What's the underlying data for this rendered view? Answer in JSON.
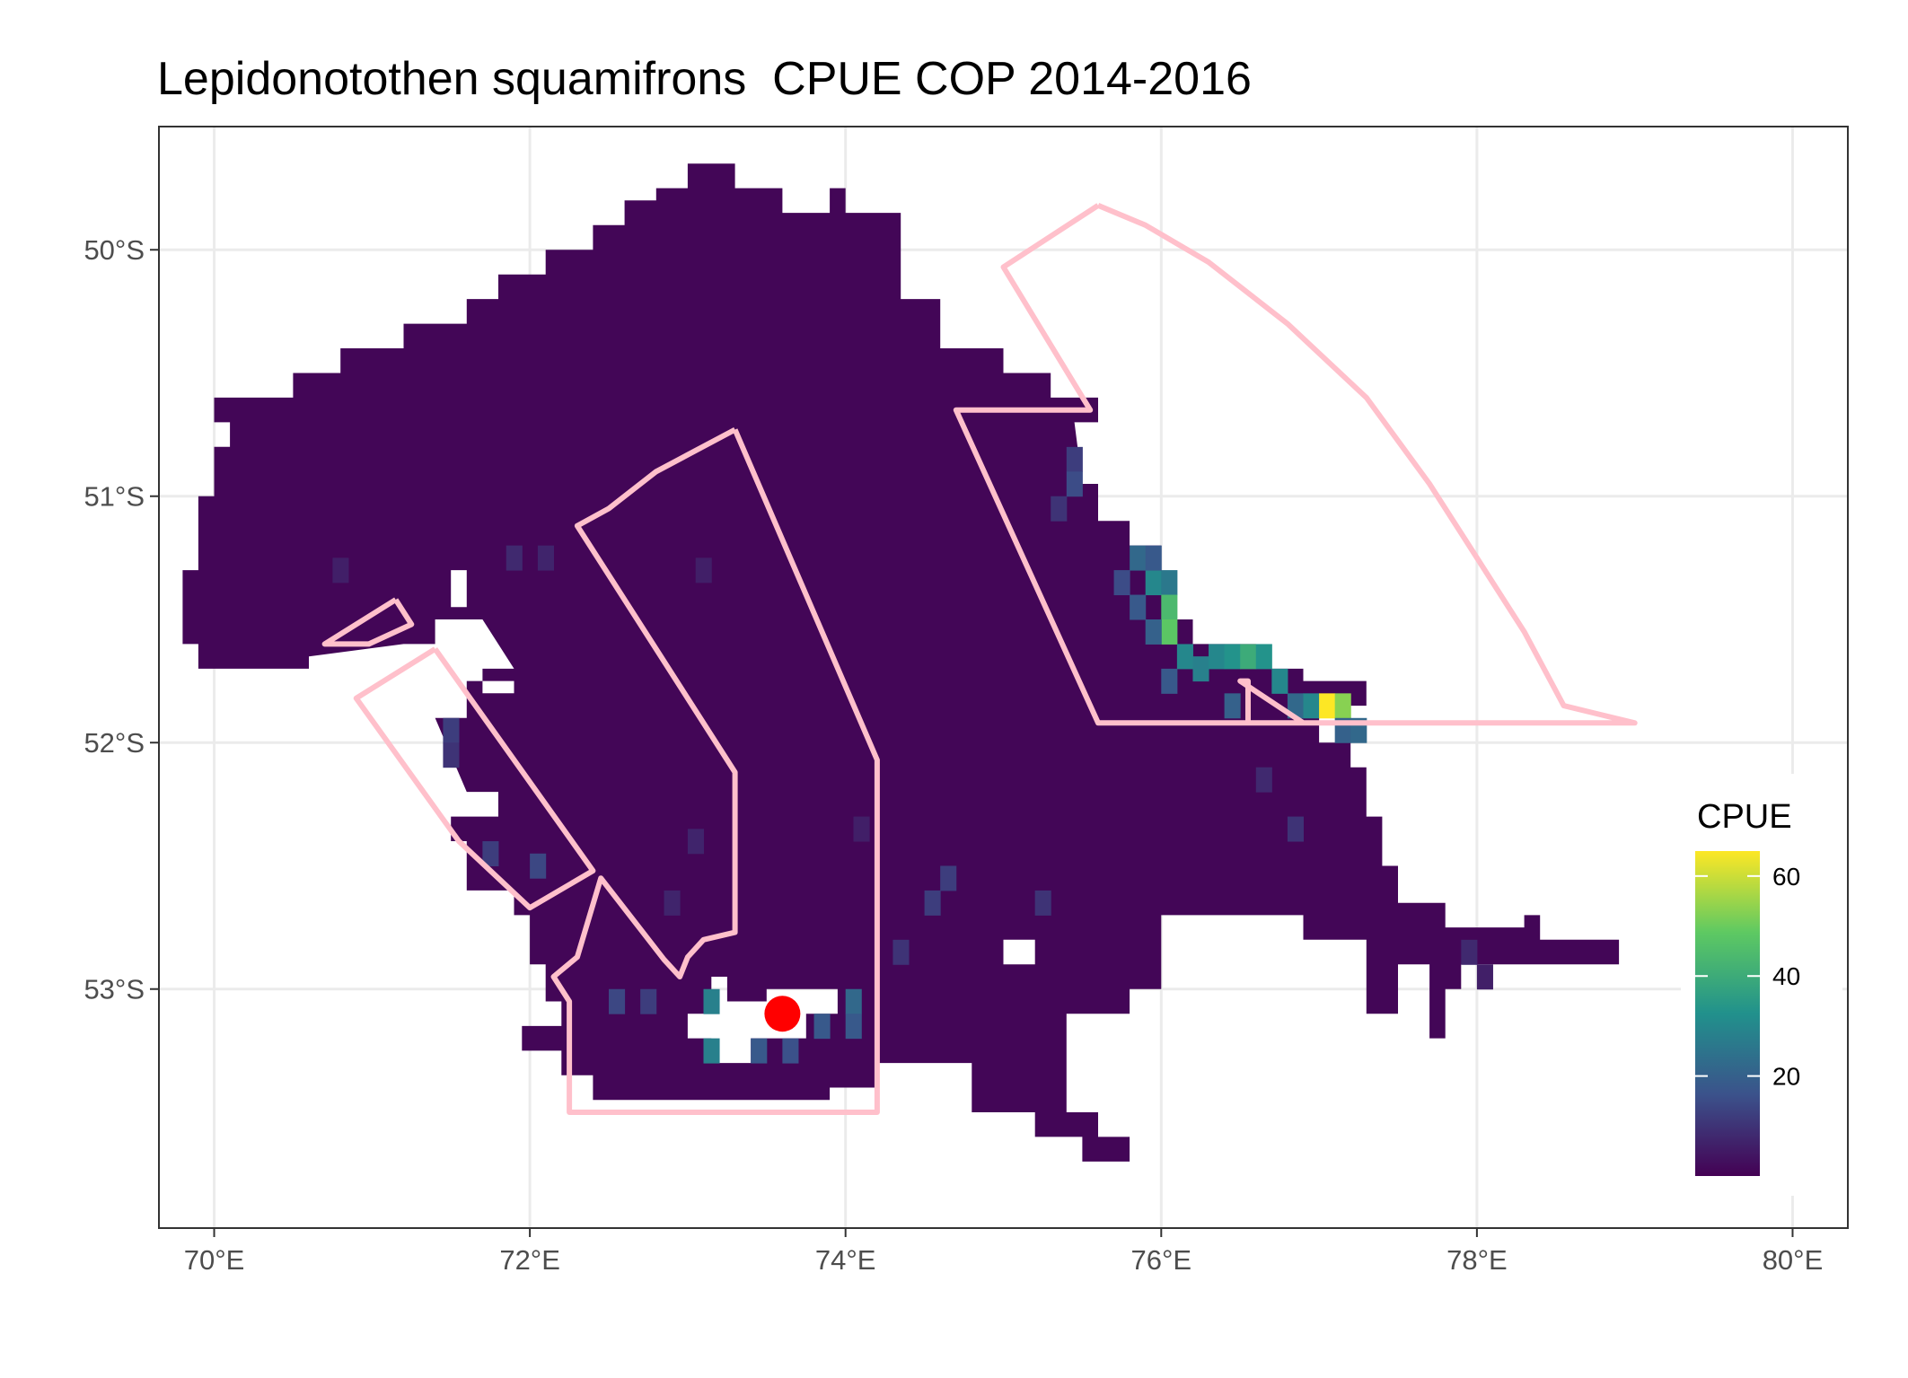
{
  "chart_data": {
    "type": "heatmap",
    "title": "Lepidonotothen squamifrons  CPUE COP 2014-2016",
    "xlabel": "",
    "ylabel": "",
    "xlim": [
      69.65,
      80.35
    ],
    "ylim": [
      -53.97,
      -49.5
    ],
    "x_ticks": [
      {
        "value": 70,
        "label": "70°E"
      },
      {
        "value": 72,
        "label": "72°E"
      },
      {
        "value": 74,
        "label": "74°E"
      },
      {
        "value": 76,
        "label": "76°E"
      },
      {
        "value": 78,
        "label": "78°E"
      },
      {
        "value": 80,
        "label": "80°E"
      }
    ],
    "y_ticks": [
      {
        "value": -50,
        "label": "50°S"
      },
      {
        "value": -51,
        "label": "51°S"
      },
      {
        "value": -52,
        "label": "52°S"
      },
      {
        "value": -53,
        "label": "53°S"
      }
    ],
    "grid": true,
    "legend": {
      "title": "CPUE",
      "placement": "right",
      "min": 0,
      "max": 65,
      "ticks": [
        20,
        40,
        60
      ],
      "colormap": [
        "#440154",
        "#3b528b",
        "#21918c",
        "#5ec962",
        "#fde725"
      ]
    },
    "region": {
      "base_value": 1,
      "polygon": [
        [
          73.0,
          49.65
        ],
        [
          73.3,
          49.65
        ],
        [
          73.3,
          49.75
        ],
        [
          73.6,
          49.75
        ],
        [
          73.6,
          49.85
        ],
        [
          73.9,
          49.85
        ],
        [
          73.9,
          49.75
        ],
        [
          74.0,
          49.75
        ],
        [
          74.0,
          49.85
        ],
        [
          74.35,
          49.85
        ],
        [
          74.35,
          50.2
        ],
        [
          74.6,
          50.2
        ],
        [
          74.6,
          50.4
        ],
        [
          75.0,
          50.4
        ],
        [
          75.0,
          50.5
        ],
        [
          75.3,
          50.5
        ],
        [
          75.3,
          50.6
        ],
        [
          75.6,
          50.6
        ],
        [
          75.6,
          50.7
        ],
        [
          75.45,
          50.7
        ],
        [
          75.5,
          50.95
        ],
        [
          75.6,
          50.95
        ],
        [
          75.6,
          51.1
        ],
        [
          75.8,
          51.1
        ],
        [
          75.8,
          51.2
        ],
        [
          76.0,
          51.2
        ],
        [
          76.0,
          51.4
        ],
        [
          76.1,
          51.4
        ],
        [
          76.1,
          51.5
        ],
        [
          76.2,
          51.5
        ],
        [
          76.2,
          51.6
        ],
        [
          76.6,
          51.6
        ],
        [
          76.6,
          51.7
        ],
        [
          76.9,
          51.7
        ],
        [
          76.9,
          51.75
        ],
        [
          77.3,
          51.75
        ],
        [
          77.3,
          51.85
        ],
        [
          77.0,
          51.85
        ],
        [
          77.0,
          52.0
        ],
        [
          77.2,
          52.0
        ],
        [
          77.2,
          52.1
        ],
        [
          77.3,
          52.1
        ],
        [
          77.3,
          52.3
        ],
        [
          77.4,
          52.3
        ],
        [
          77.4,
          52.5
        ],
        [
          77.5,
          52.5
        ],
        [
          77.5,
          52.65
        ],
        [
          77.8,
          52.65
        ],
        [
          77.8,
          52.75
        ],
        [
          78.3,
          52.75
        ],
        [
          78.3,
          52.7
        ],
        [
          78.4,
          52.7
        ],
        [
          78.4,
          52.8
        ],
        [
          78.9,
          52.8
        ],
        [
          78.9,
          52.9
        ],
        [
          78.5,
          52.9
        ],
        [
          78.5,
          52.9
        ],
        [
          78.4,
          52.9
        ],
        [
          78.0,
          52.9
        ],
        [
          77.9,
          52.9
        ],
        [
          77.9,
          53.0
        ],
        [
          77.8,
          53.0
        ],
        [
          77.8,
          53.2
        ],
        [
          77.7,
          53.2
        ],
        [
          77.7,
          52.9
        ],
        [
          77.5,
          52.9
        ],
        [
          77.5,
          53.1
        ],
        [
          77.3,
          53.1
        ],
        [
          77.3,
          52.8
        ],
        [
          76.9,
          52.8
        ],
        [
          76.9,
          52.7
        ],
        [
          76.0,
          52.7
        ],
        [
          76.0,
          53.0
        ],
        [
          75.8,
          53.0
        ],
        [
          75.8,
          53.1
        ],
        [
          75.4,
          53.1
        ],
        [
          75.4,
          53.5
        ],
        [
          75.6,
          53.5
        ],
        [
          75.6,
          53.6
        ],
        [
          75.8,
          53.6
        ],
        [
          75.8,
          53.7
        ],
        [
          75.5,
          53.7
        ],
        [
          75.5,
          53.6
        ],
        [
          75.2,
          53.6
        ],
        [
          75.2,
          53.5
        ],
        [
          74.8,
          53.5
        ],
        [
          74.8,
          53.3
        ],
        [
          74.2,
          53.3
        ],
        [
          74.2,
          53.4
        ],
        [
          73.9,
          53.4
        ],
        [
          73.9,
          53.45
        ],
        [
          73.6,
          53.45
        ],
        [
          73.6,
          53.45
        ],
        [
          73.1,
          53.45
        ],
        [
          72.8,
          53.45
        ],
        [
          72.7,
          53.45
        ],
        [
          72.6,
          53.45
        ],
        [
          72.4,
          53.45
        ],
        [
          72.4,
          53.35
        ],
        [
          72.2,
          53.35
        ],
        [
          72.2,
          53.25
        ],
        [
          71.95,
          53.25
        ],
        [
          71.95,
          53.15
        ],
        [
          72.2,
          53.15
        ],
        [
          72.2,
          53.05
        ],
        [
          72.1,
          53.05
        ],
        [
          72.1,
          52.9
        ],
        [
          72.0,
          52.9
        ],
        [
          72.0,
          52.7
        ],
        [
          71.9,
          52.7
        ],
        [
          71.9,
          52.6
        ],
        [
          71.6,
          52.6
        ],
        [
          71.6,
          52.4
        ],
        [
          71.5,
          52.4
        ],
        [
          71.5,
          52.3
        ],
        [
          71.8,
          52.3
        ],
        [
          71.8,
          52.2
        ],
        [
          71.6,
          52.2
        ],
        [
          71.4,
          51.9
        ],
        [
          71.6,
          51.9
        ],
        [
          71.6,
          51.75
        ],
        [
          71.9,
          51.75
        ],
        [
          71.9,
          51.7
        ],
        [
          71.7,
          51.5
        ],
        [
          71.4,
          51.5
        ],
        [
          71.4,
          51.6
        ],
        [
          71.2,
          51.6
        ],
        [
          70.6,
          51.65
        ],
        [
          70.6,
          51.7
        ],
        [
          69.9,
          51.7
        ],
        [
          69.9,
          51.6
        ],
        [
          69.8,
          51.6
        ],
        [
          69.8,
          51.3
        ],
        [
          69.9,
          51.3
        ],
        [
          69.9,
          51.0
        ],
        [
          70.0,
          51.0
        ],
        [
          70.0,
          50.8
        ],
        [
          70.1,
          50.8
        ],
        [
          70.1,
          50.7
        ],
        [
          70.0,
          50.7
        ],
        [
          70.0,
          50.6
        ],
        [
          70.5,
          50.6
        ],
        [
          70.5,
          50.5
        ],
        [
          70.8,
          50.5
        ],
        [
          70.8,
          50.4
        ],
        [
          71.2,
          50.4
        ],
        [
          71.2,
          50.3
        ],
        [
          71.6,
          50.3
        ],
        [
          71.6,
          50.2
        ],
        [
          71.8,
          50.2
        ],
        [
          71.8,
          50.1
        ],
        [
          72.1,
          50.1
        ],
        [
          72.1,
          50.0
        ],
        [
          72.4,
          50.0
        ],
        [
          72.4,
          49.9
        ],
        [
          72.6,
          49.9
        ],
        [
          72.6,
          49.8
        ],
        [
          72.8,
          49.8
        ],
        [
          72.8,
          49.75
        ],
        [
          73.0,
          49.75
        ]
      ],
      "holes": [
        [
          [
            71.5,
            51.3
          ],
          [
            71.6,
            51.3
          ],
          [
            71.6,
            51.45
          ],
          [
            71.5,
            51.45
          ]
        ],
        [
          [
            71.7,
            51.7
          ],
          [
            71.9,
            51.7
          ],
          [
            71.9,
            51.8
          ],
          [
            71.7,
            51.8
          ]
        ],
        [
          [
            73.15,
            52.95
          ],
          [
            73.25,
            52.95
          ],
          [
            73.25,
            53.05
          ],
          [
            73.5,
            53.05
          ],
          [
            73.5,
            53.0
          ],
          [
            73.95,
            53.0
          ],
          [
            73.95,
            53.1
          ],
          [
            73.75,
            53.1
          ],
          [
            73.75,
            53.2
          ],
          [
            73.4,
            53.2
          ],
          [
            73.4,
            53.3
          ],
          [
            73.15,
            53.3
          ],
          [
            73.15,
            53.2
          ],
          [
            73.0,
            53.2
          ],
          [
            73.0,
            53.1
          ],
          [
            73.15,
            53.1
          ]
        ],
        [
          [
            75.0,
            52.8
          ],
          [
            75.2,
            52.8
          ],
          [
            75.2,
            52.9
          ],
          [
            75.0,
            52.9
          ]
        ]
      ]
    },
    "cells": [
      {
        "x": 75.95,
        "y": 51.35,
        "v": 30
      },
      {
        "x": 76.05,
        "y": 51.35,
        "v": 26
      },
      {
        "x": 76.05,
        "y": 51.45,
        "v": 44
      },
      {
        "x": 76.05,
        "y": 51.55,
        "v": 48
      },
      {
        "x": 75.85,
        "y": 51.25,
        "v": 22
      },
      {
        "x": 75.95,
        "y": 51.25,
        "v": 18
      },
      {
        "x": 76.15,
        "y": 51.65,
        "v": 30
      },
      {
        "x": 76.25,
        "y": 51.7,
        "v": 28
      },
      {
        "x": 76.35,
        "y": 51.65,
        "v": 30
      },
      {
        "x": 76.45,
        "y": 51.65,
        "v": 33
      },
      {
        "x": 76.55,
        "y": 51.65,
        "v": 40
      },
      {
        "x": 76.65,
        "y": 51.65,
        "v": 33
      },
      {
        "x": 76.75,
        "y": 51.75,
        "v": 30
      },
      {
        "x": 76.85,
        "y": 51.85,
        "v": 22
      },
      {
        "x": 76.95,
        "y": 51.85,
        "v": 30
      },
      {
        "x": 77.05,
        "y": 51.85,
        "v": 65
      },
      {
        "x": 77.15,
        "y": 51.85,
        "v": 53
      },
      {
        "x": 77.15,
        "y": 51.95,
        "v": 20
      },
      {
        "x": 77.25,
        "y": 51.95,
        "v": 22
      },
      {
        "x": 75.75,
        "y": 51.35,
        "v": 15
      },
      {
        "x": 75.85,
        "y": 51.45,
        "v": 18
      },
      {
        "x": 75.95,
        "y": 51.55,
        "v": 20
      },
      {
        "x": 76.05,
        "y": 51.75,
        "v": 18
      },
      {
        "x": 76.45,
        "y": 51.85,
        "v": 20
      },
      {
        "x": 75.45,
        "y": 50.85,
        "v": 12
      },
      {
        "x": 75.45,
        "y": 50.95,
        "v": 15
      },
      {
        "x": 75.35,
        "y": 51.05,
        "v": 10
      },
      {
        "x": 73.15,
        "y": 53.05,
        "v": 28
      },
      {
        "x": 73.15,
        "y": 53.25,
        "v": 28
      },
      {
        "x": 73.45,
        "y": 53.25,
        "v": 18
      },
      {
        "x": 73.65,
        "y": 53.25,
        "v": 16
      },
      {
        "x": 73.85,
        "y": 53.15,
        "v": 18
      },
      {
        "x": 74.05,
        "y": 53.05,
        "v": 22
      },
      {
        "x": 74.05,
        "y": 53.15,
        "v": 18
      },
      {
        "x": 72.55,
        "y": 53.05,
        "v": 14
      },
      {
        "x": 72.75,
        "y": 53.05,
        "v": 12
      },
      {
        "x": 74.35,
        "y": 52.85,
        "v": 10
      },
      {
        "x": 74.55,
        "y": 52.65,
        "v": 12
      },
      {
        "x": 74.65,
        "y": 52.55,
        "v": 12
      },
      {
        "x": 71.75,
        "y": 52.45,
        "v": 12
      },
      {
        "x": 72.05,
        "y": 52.5,
        "v": 14
      },
      {
        "x": 71.5,
        "y": 51.95,
        "v": 12
      },
      {
        "x": 71.5,
        "y": 52.05,
        "v": 10
      },
      {
        "x": 75.25,
        "y": 52.65,
        "v": 10
      },
      {
        "x": 76.85,
        "y": 52.35,
        "v": 10
      },
      {
        "x": 76.65,
        "y": 52.15,
        "v": 8
      },
      {
        "x": 77.95,
        "y": 52.85,
        "v": 8
      },
      {
        "x": 78.05,
        "y": 52.95,
        "v": 6
      },
      {
        "x": 71.9,
        "y": 51.25,
        "v": 8
      },
      {
        "x": 72.1,
        "y": 51.25,
        "v": 7
      },
      {
        "x": 70.8,
        "y": 51.3,
        "v": 6
      },
      {
        "x": 73.1,
        "y": 51.3,
        "v": 6
      },
      {
        "x": 73.05,
        "y": 52.4,
        "v": 7
      },
      {
        "x": 74.1,
        "y": 52.35,
        "v": 6
      },
      {
        "x": 72.9,
        "y": 52.65,
        "v": 7
      }
    ],
    "cell_size": [
      0.1,
      0.1
    ],
    "boundaries": [
      {
        "name": "",
        "points": [
          [
            75.6,
            49.82
          ],
          [
            75.9,
            49.9
          ],
          [
            76.3,
            50.05
          ],
          [
            76.8,
            50.3
          ],
          [
            77.3,
            50.6
          ],
          [
            77.7,
            50.95
          ],
          [
            78.0,
            51.25
          ],
          [
            78.3,
            51.55
          ],
          [
            78.55,
            51.85
          ],
          [
            79.0,
            51.92
          ],
          [
            76.55,
            51.92
          ],
          [
            76.55,
            51.75
          ],
          [
            76.5,
            51.75
          ],
          [
            76.9,
            51.92
          ],
          [
            75.6,
            51.92
          ],
          [
            74.7,
            50.65
          ],
          [
            75.55,
            50.65
          ],
          [
            75.0,
            50.07
          ],
          [
            75.6,
            49.82
          ]
        ]
      },
      {
        "name": "",
        "points": [
          [
            73.3,
            50.73
          ],
          [
            74.2,
            52.07
          ],
          [
            74.2,
            53.5
          ],
          [
            72.25,
            53.5
          ],
          [
            72.25,
            53.05
          ],
          [
            72.15,
            52.95
          ],
          [
            72.3,
            52.87
          ],
          [
            72.45,
            52.55
          ],
          [
            72.85,
            52.88
          ],
          [
            72.95,
            52.95
          ],
          [
            73.0,
            52.87
          ],
          [
            73.1,
            52.8
          ],
          [
            73.3,
            52.77
          ],
          [
            73.3,
            52.12
          ],
          [
            72.3,
            51.12
          ],
          [
            72.5,
            51.05
          ],
          [
            72.8,
            50.9
          ],
          [
            73.3,
            50.73
          ]
        ]
      },
      {
        "name": "",
        "points": [
          [
            71.4,
            51.62
          ],
          [
            72.4,
            52.52
          ],
          [
            72.0,
            52.67
          ],
          [
            71.55,
            52.4
          ],
          [
            70.9,
            51.82
          ],
          [
            71.4,
            51.62
          ]
        ]
      },
      {
        "name": "",
        "points": [
          [
            71.15,
            51.42
          ],
          [
            71.25,
            51.52
          ],
          [
            70.98,
            51.6
          ],
          [
            70.7,
            51.6
          ],
          [
            71.15,
            51.42
          ]
        ]
      }
    ],
    "marker": {
      "x": 73.6,
      "y": -53.1,
      "color": "#ff0000"
    },
    "boundary_color": "#ffc0cb"
  }
}
